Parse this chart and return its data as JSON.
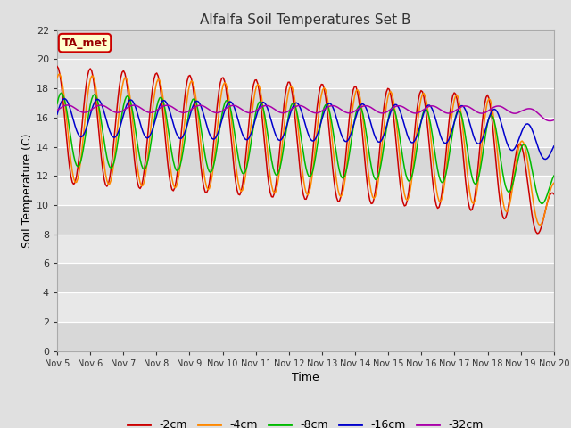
{
  "title": "Alfalfa Soil Temperatures Set B",
  "xlabel": "Time",
  "ylabel": "Soil Temperature (C)",
  "ylim": [
    0,
    22
  ],
  "yticks": [
    0,
    2,
    4,
    6,
    8,
    10,
    12,
    14,
    16,
    18,
    20,
    22
  ],
  "bg_color": "#e0e0e0",
  "plot_bg_color": "#e8e8e8",
  "annotation_text": "TA_met",
  "annotation_bg": "#ffffcc",
  "annotation_border": "#cc0000",
  "x_tick_labels": [
    "Nov 5",
    "Nov 6",
    "Nov 7",
    "Nov 8",
    "Nov 9",
    "Nov 10",
    "Nov 11",
    "Nov 12",
    "Nov 13",
    "Nov 14",
    "Nov 15",
    "Nov 16",
    "Nov 17",
    "Nov 18",
    "Nov 19",
    "Nov 20"
  ],
  "series_colors": [
    "#cc0000",
    "#ff8800",
    "#00bb00",
    "#0000cc",
    "#aa00aa"
  ],
  "series_labels": [
    "-2cm",
    "-4cm",
    "-8cm",
    "-16cm",
    "-32cm"
  ],
  "n_points": 360
}
